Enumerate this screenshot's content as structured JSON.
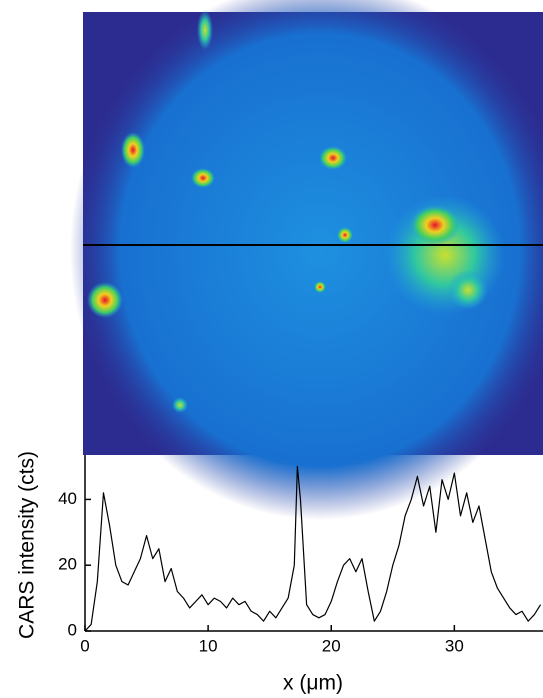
{
  "chart_data": {
    "type": "line",
    "x_label": "x (μm)",
    "y_label": "CARS intensity (cts)",
    "series": [
      {
        "name": null,
        "color": "#000000",
        "x": [
          0,
          0.5,
          1,
          1.5,
          2,
          2.5,
          3,
          3.5,
          4,
          4.5,
          5,
          5.5,
          6,
          6.5,
          7,
          7.5,
          8,
          8.5,
          9,
          9.5,
          10,
          10.5,
          11,
          11.5,
          12,
          12.5,
          13,
          13.5,
          14,
          14.5,
          15,
          15.5,
          16,
          16.5,
          17,
          17.25,
          17.5,
          18,
          18.5,
          19,
          19.5,
          20,
          20.5,
          21,
          21.5,
          22,
          22.5,
          23,
          23.5,
          24,
          24.5,
          25,
          25.5,
          26,
          26.5,
          27,
          27.5,
          28,
          28.5,
          29,
          29.5,
          30,
          30.5,
          31,
          31.5,
          32,
          32.5,
          33,
          33.5,
          34,
          34.5,
          35,
          35.5,
          36,
          36.5,
          37
        ],
        "values": [
          0,
          2,
          15,
          42,
          32,
          20,
          15,
          14,
          18,
          22,
          29,
          22,
          25,
          15,
          19,
          12,
          10,
          7,
          9,
          11,
          8,
          10,
          9,
          7,
          10,
          8,
          9,
          6,
          5,
          3,
          6,
          4,
          7,
          10,
          20,
          50,
          40,
          8,
          5,
          4,
          5,
          9,
          15,
          20,
          22,
          18,
          22,
          12,
          3,
          6,
          12,
          20,
          26,
          35,
          40,
          47,
          38,
          44,
          30,
          46,
          40,
          48,
          35,
          42,
          33,
          38,
          28,
          18,
          13,
          10,
          7,
          5,
          6,
          3,
          5,
          8
        ]
      }
    ],
    "xlim": [
      0,
      37.2
    ],
    "xticks": [
      0,
      10,
      20,
      30
    ],
    "ylim": [
      0,
      53.5
    ],
    "yticks": [
      0,
      20,
      40
    ]
  }
}
